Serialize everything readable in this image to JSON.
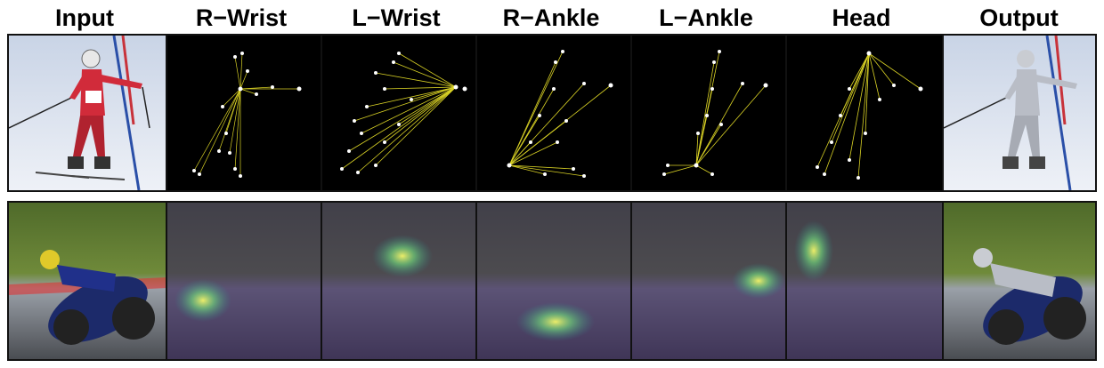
{
  "headers": {
    "input": "Input",
    "r_wrist": "R−Wrist",
    "l_wrist": "L−Wrist",
    "r_ankle": "R−Ankle",
    "l_ankle": "L−Ankle",
    "head": "Head",
    "output": "Output"
  },
  "colors": {
    "attention_lines": "#f2ea2a",
    "keypoints": "#ffffff",
    "heatmap_base": "#3b2a5a",
    "heatmap_hot": "#f5f56a"
  },
  "rows": [
    {
      "name": "skier",
      "panels": [
        "input-photo",
        "r-wrist-attention",
        "l-wrist-attention",
        "r-ankle-attention",
        "l-ankle-attention",
        "head-attention",
        "output-mesh"
      ]
    },
    {
      "name": "motorcyclist",
      "panels": [
        "input-photo",
        "r-wrist-heatmap",
        "l-wrist-heatmap",
        "r-ankle-heatmap",
        "l-ankle-heatmap",
        "head-heatmap",
        "output-mesh"
      ]
    }
  ]
}
